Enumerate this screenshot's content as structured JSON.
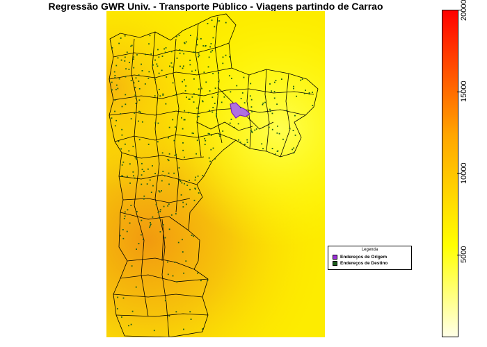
{
  "title": "Regressão GWR Univ. - Transporte Público - Viagens partindo de Carrao",
  "legend": {
    "title": "Legenda",
    "items": [
      {
        "label": "Endereços de Origem",
        "color": "#9b30d9"
      },
      {
        "label": "Endereços de Destino",
        "color": "#1a5e1a"
      }
    ]
  },
  "colorbar": {
    "min": 0,
    "max": 20000,
    "ticks": [
      {
        "value": 5000,
        "label": "5000"
      },
      {
        "value": 10000,
        "label": "10000"
      },
      {
        "value": 15000,
        "label": "15000"
      },
      {
        "value": 20000,
        "label": "20000"
      }
    ],
    "colors": {
      "low": "#ffffe8",
      "mid1": "#ffff00",
      "mid2": "#ffa500",
      "high": "#ff0000"
    }
  },
  "map": {
    "background_low": "#ffff00",
    "background_high": "#ffa500",
    "boundary_color": "#000000"
  }
}
